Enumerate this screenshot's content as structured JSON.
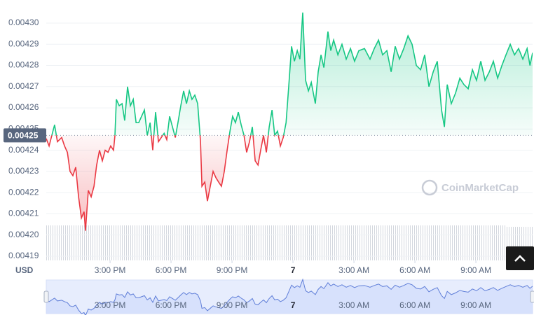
{
  "chart_data": {
    "type": "line",
    "currency_label": "USD",
    "watermark": "CoinMarketCap",
    "x": [
      11.86,
      12.0,
      12.14,
      12.27,
      12.41,
      12.62,
      12.76,
      12.9,
      13.03,
      13.17,
      13.31,
      13.45,
      13.59,
      13.72,
      13.79,
      13.93,
      14.07,
      14.21,
      14.34,
      14.48,
      14.62,
      14.76,
      14.9,
      15.03,
      15.17,
      15.24,
      15.31,
      15.45,
      15.59,
      15.72,
      15.86,
      16.0,
      16.14,
      16.28,
      16.41,
      16.55,
      16.69,
      16.83,
      16.97,
      17.1,
      17.24,
      17.38,
      17.52,
      17.66,
      17.79,
      17.93,
      18.07,
      18.21,
      18.34,
      18.48,
      18.62,
      18.76,
      18.9,
      19.03,
      19.17,
      19.31,
      19.45,
      19.52,
      19.66,
      19.79,
      19.93,
      20.07,
      20.21,
      20.34,
      20.48,
      20.62,
      20.76,
      20.9,
      21.03,
      21.17,
      21.31,
      21.45,
      21.59,
      21.72,
      21.86,
      22.0,
      22.14,
      22.28,
      22.41,
      22.55,
      22.69,
      22.83,
      22.97,
      23.1,
      23.24,
      23.38,
      23.52,
      23.66,
      23.79,
      23.93,
      24.07,
      24.21,
      24.34,
      24.48,
      24.62,
      24.76,
      24.9,
      25.1,
      25.24,
      25.38,
      25.52,
      25.72,
      25.86,
      26.0,
      26.21,
      26.41,
      26.62,
      26.83,
      27.03,
      27.24,
      27.52,
      27.79,
      28.0,
      28.21,
      28.41,
      28.62,
      28.83,
      29.03,
      29.24,
      29.45,
      29.66,
      29.86,
      30.07,
      30.28,
      30.48,
      30.69,
      30.9,
      31.1,
      31.31,
      31.45,
      31.59,
      31.79,
      32.0,
      32.21,
      32.41,
      32.62,
      32.83,
      33.03,
      33.24,
      33.45,
      33.66,
      33.86,
      34.07,
      34.28,
      34.48,
      34.69,
      34.9,
      35.1,
      35.31,
      35.52,
      35.66,
      35.79
    ],
    "values": [
      0.0042455,
      0.004242,
      0.0042472,
      0.004252,
      0.004244,
      0.004246,
      0.004242,
      0.004239,
      0.00423,
      0.004228,
      0.004232,
      0.004218,
      0.004208,
      0.004211,
      0.004202,
      0.004221,
      0.004218,
      0.004223,
      0.004233,
      0.00424,
      0.004235,
      0.00424,
      0.004239,
      0.004242,
      0.00424,
      0.004247,
      0.004264,
      0.004261,
      0.004262,
      0.004254,
      0.00427,
      0.004261,
      0.004264,
      0.004253,
      0.004253,
      0.004256,
      0.004259,
      0.004247,
      0.004253,
      0.00424,
      0.004258,
      0.004244,
      0.004246,
      0.004248,
      0.004245,
      0.004256,
      0.004251,
      0.004246,
      0.004253,
      0.004261,
      0.004268,
      0.004262,
      0.004268,
      0.004264,
      0.004266,
      0.004262,
      0.004244,
      0.004223,
      0.004225,
      0.004216,
      0.004223,
      0.00423,
      0.004227,
      0.004225,
      0.004223,
      0.00423,
      0.00424,
      0.004249,
      0.004256,
      0.004253,
      0.004258,
      0.004252,
      0.004247,
      0.004239,
      0.004244,
      0.004251,
      0.004235,
      0.004233,
      0.00424,
      0.004247,
      0.004239,
      0.004251,
      0.004259,
      0.004247,
      0.004249,
      0.004242,
      0.004246,
      0.004253,
      0.00427,
      0.004289,
      0.004282,
      0.004287,
      0.004283,
      0.004305,
      0.004273,
      0.004268,
      0.004272,
      0.004262,
      0.004277,
      0.004285,
      0.004279,
      0.004296,
      0.004287,
      0.004292,
      0.004285,
      0.00429,
      0.004283,
      0.004288,
      0.004282,
      0.004287,
      0.004288,
      0.004283,
      0.004288,
      0.004292,
      0.004285,
      0.004287,
      0.004277,
      0.004289,
      0.004283,
      0.004288,
      0.004294,
      0.00429,
      0.00428,
      0.004278,
      0.004285,
      0.00427,
      0.004277,
      0.004282,
      0.004259,
      0.004251,
      0.004271,
      0.004262,
      0.004267,
      0.004274,
      0.004271,
      0.004269,
      0.004278,
      0.004273,
      0.004282,
      0.004273,
      0.004277,
      0.004282,
      0.004274,
      0.00428,
      0.004285,
      0.00429,
      0.004285,
      0.004288,
      0.004283,
      0.004288,
      0.00428,
      0.004286
    ],
    "up_color": "#16c784",
    "down_color": "#ea3943",
    "baseline": {
      "value": 0.004247,
      "label": "0.00425"
    },
    "xlim": [
      11.86,
      35.79
    ],
    "xticks": [
      {
        "value": 15,
        "label": "3:00 PM"
      },
      {
        "value": 18,
        "label": "6:00 PM"
      },
      {
        "value": 21,
        "label": "9:00 PM"
      },
      {
        "value": 24,
        "label": "7"
      },
      {
        "value": 27,
        "label": "3:00 AM"
      },
      {
        "value": 30,
        "label": "6:00 AM"
      },
      {
        "value": 33,
        "label": "9:00 AM"
      }
    ],
    "ylim": [
      0.004188,
      0.0043076
    ],
    "yticks": [
      {
        "value": 0.0043,
        "label": "0.00430"
      },
      0.00429,
      0.00428,
      0.00427,
      0.00426,
      0.00425,
      0.00424,
      0.00423,
      0.00422,
      0.00421,
      {
        "value": 0.0042,
        "label": "0.00420"
      },
      0.00419
    ],
    "grid": true
  }
}
